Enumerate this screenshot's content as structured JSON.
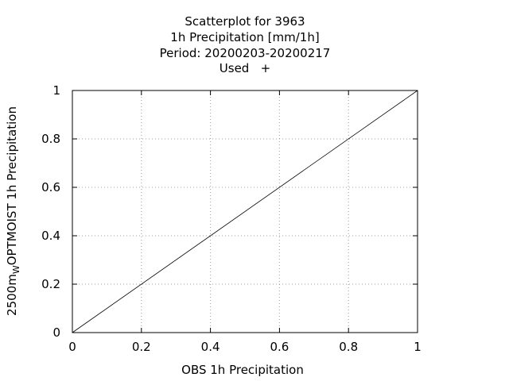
{
  "chart_data": {
    "type": "scatter",
    "title_lines": [
      "Scatterplot for     3963",
      "1h Precipitation [mm/1h]",
      "Period: 20200203-20200217",
      "Used   +"
    ],
    "xlabel": "OBS 1h Precipitation",
    "ylabel": {
      "prefix": "2500m",
      "subscript": "W",
      "suffix": "OPTMOIST 1h Precipitation"
    },
    "xlim": [
      0,
      1
    ],
    "ylim": [
      0,
      1
    ],
    "xticks": [
      0,
      0.2,
      0.4,
      0.6,
      0.8,
      1
    ],
    "yticks": [
      0,
      0.2,
      0.4,
      0.6,
      0.8,
      1
    ],
    "xtick_labels": [
      "0",
      "0.2",
      "0.4",
      "0.6",
      "0.8",
      "1"
    ],
    "ytick_labels": [
      "0",
      "0.2",
      "0.4",
      "0.6",
      "0.8",
      "1"
    ],
    "grid": true,
    "series": [
      {
        "points": []
      }
    ],
    "reference_line": {
      "x": [
        0,
        1
      ],
      "y": [
        0,
        1
      ]
    },
    "colors": {
      "line": "#000000",
      "grid": "#a0a0a0",
      "frame": "#000000"
    }
  }
}
